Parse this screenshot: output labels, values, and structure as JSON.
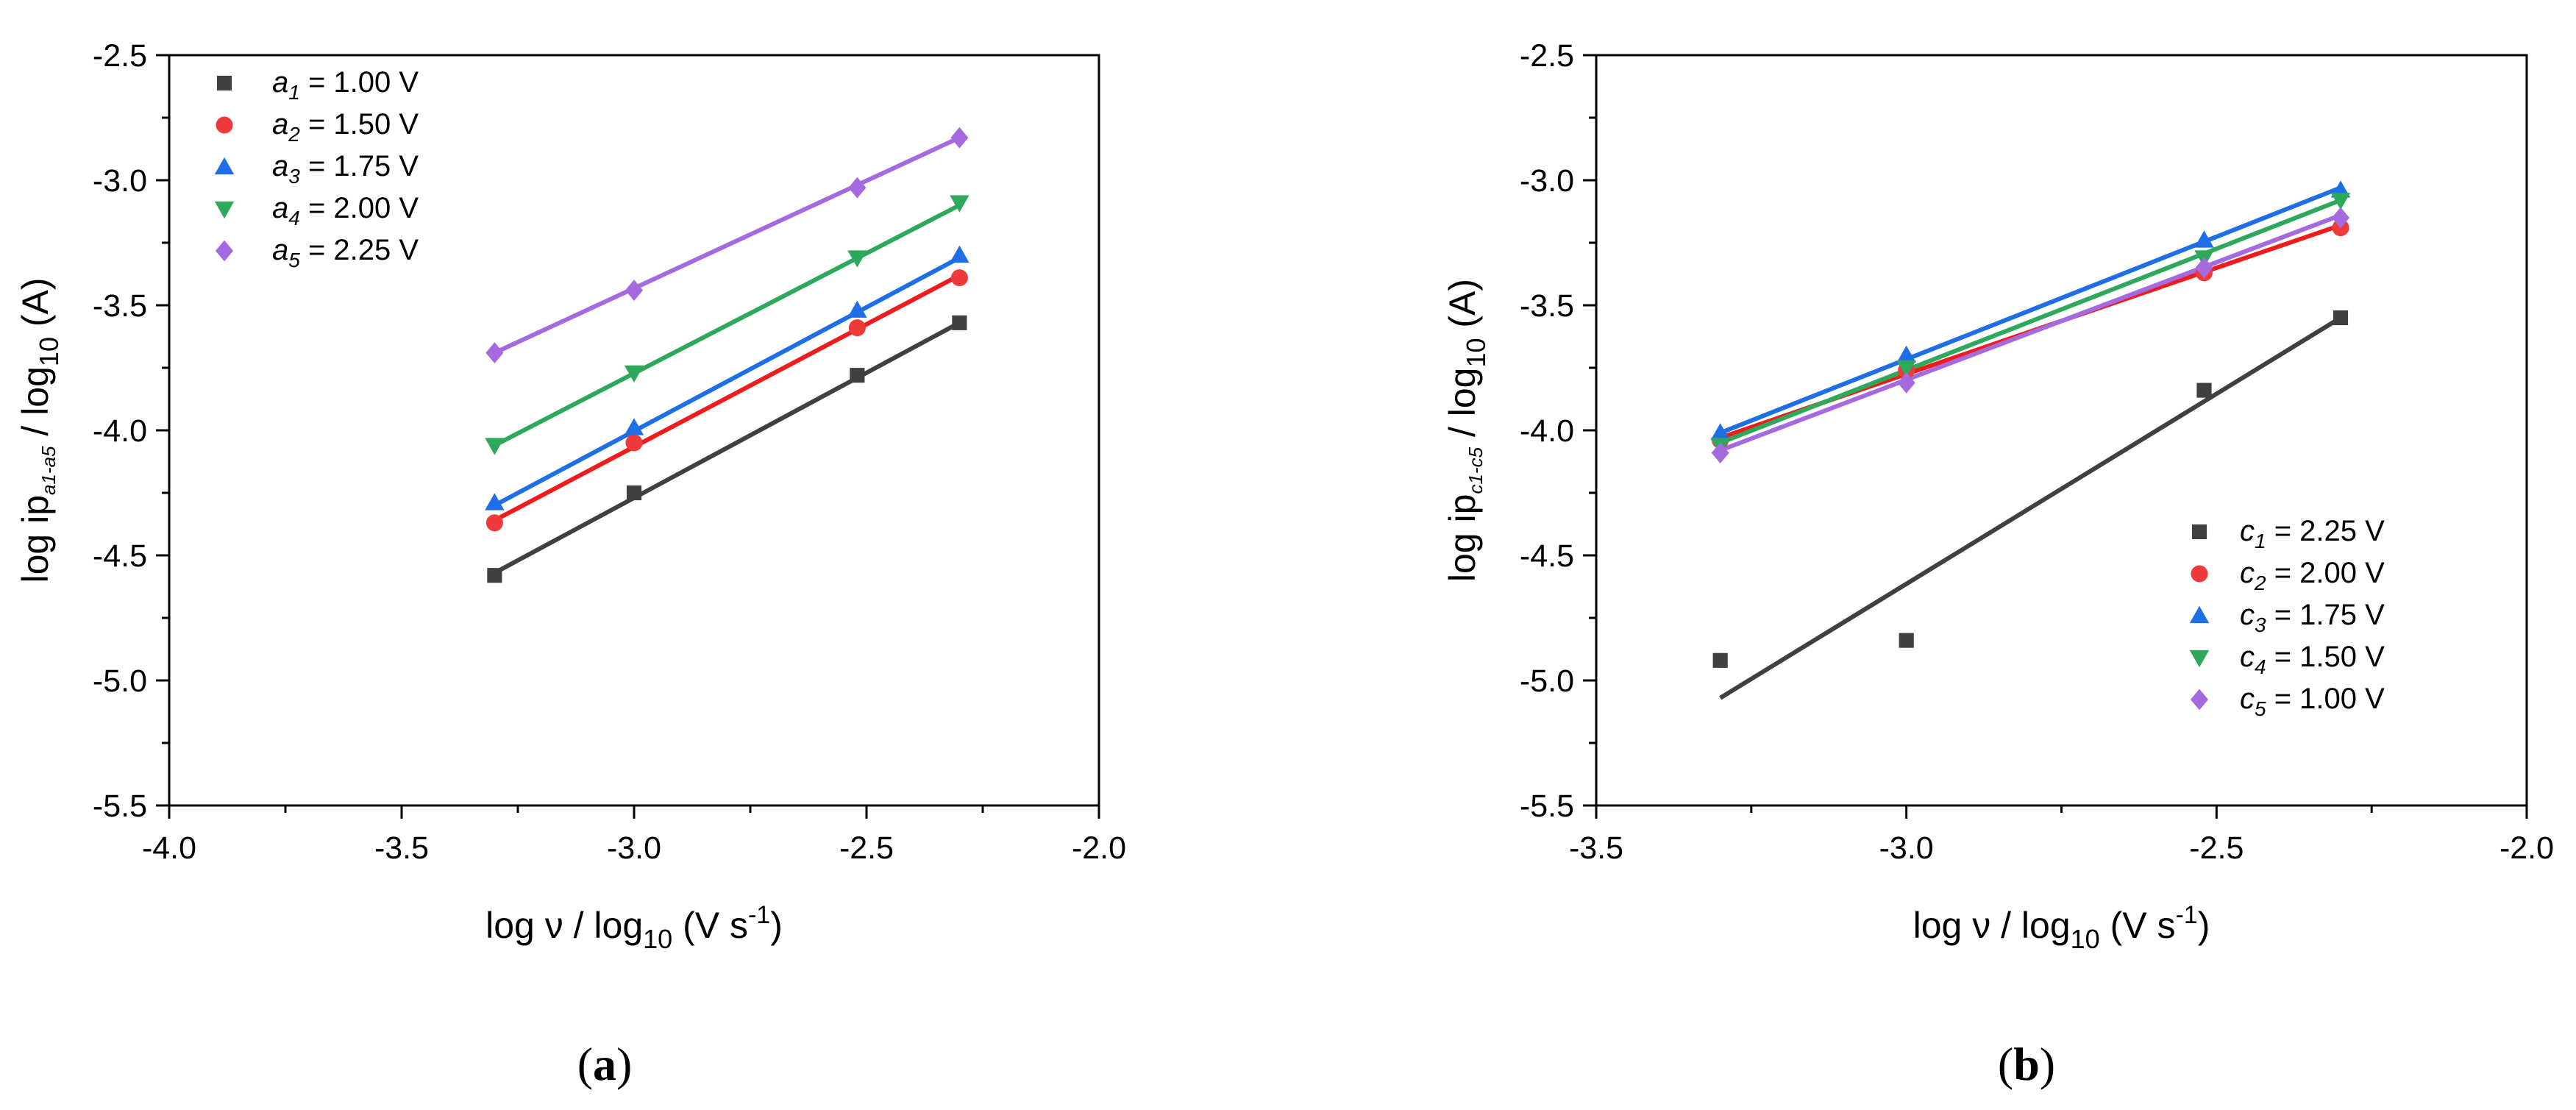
{
  "chart_data": [
    {
      "panel": "a",
      "panel_label": "(a)",
      "type": "scatter",
      "xlabel_main": "log ν / log",
      "xlabel_sub": "10",
      "xlabel_rest": " (V s",
      "xlabel_sup": "-1",
      "xlabel_end": ")",
      "ylabel_main": "log ip",
      "ylabel_sub": "a1-a5",
      "ylabel_sub2": "10",
      "ylabel_mid": " / log",
      "ylabel_end": " (A)",
      "xlim": [
        -4.0,
        -2.0
      ],
      "ylim": [
        -5.5,
        -2.5
      ],
      "xticks": [
        -4.0,
        -3.5,
        -3.0,
        -2.5,
        -2.0
      ],
      "yticks": [
        -5.5,
        -5.0,
        -4.5,
        -4.0,
        -3.5,
        -3.0,
        -2.5
      ],
      "xtick_labels": [
        "-4.0",
        "-3.5",
        "-3.0",
        "-2.5",
        "-2.0"
      ],
      "ytick_labels": [
        "-5.5",
        "-5.0",
        "-4.5",
        "-4.0",
        "-3.5",
        "-3.0",
        "-2.5"
      ],
      "legend_position": "top-left",
      "x": [
        -3.3,
        -3.0,
        -2.52,
        -2.3
      ],
      "series": [
        {
          "name": "a1 = 1.00 V",
          "sym": "a",
          "idx": "1",
          "val": " = 1.00 V",
          "marker": "square",
          "color": "#404040",
          "line_color": "#404040",
          "values": [
            -4.58,
            -4.25,
            -3.78,
            -3.57
          ],
          "fit": [
            -4.57,
            -3.57
          ]
        },
        {
          "name": "a2 = 1.50 V",
          "sym": "a",
          "idx": "2",
          "val": " = 1.50 V",
          "marker": "circle",
          "color": "#ee3a3a",
          "line_color": "#ee1c1c",
          "values": [
            -4.37,
            -4.05,
            -3.59,
            -3.39
          ],
          "fit": [
            -4.36,
            -3.38
          ]
        },
        {
          "name": "a3 = 1.75 V",
          "sym": "a",
          "idx": "3",
          "val": " = 1.75 V",
          "marker": "triangle-up",
          "color": "#1e6ee8",
          "line_color": "#1e6ee8",
          "values": [
            -4.29,
            -3.99,
            -3.52,
            -3.3
          ],
          "fit": [
            -4.3,
            -3.31
          ]
        },
        {
          "name": "a4 = 2.00 V",
          "sym": "a",
          "idx": "4",
          "val": " = 2.00 V",
          "marker": "triangle-down",
          "color": "#2ea85a",
          "line_color": "#2ea85a",
          "values": [
            -4.06,
            -3.77,
            -3.31,
            -3.09
          ],
          "fit": [
            -4.06,
            -3.1
          ]
        },
        {
          "name": "a5 = 2.25 V",
          "sym": "a",
          "idx": "5",
          "val": " = 2.25 V",
          "marker": "diamond",
          "color": "#a56ae0",
          "line_color": "#a56ae0",
          "values": [
            -3.69,
            -3.44,
            -3.03,
            -2.83
          ],
          "fit": [
            -3.69,
            -2.83
          ]
        }
      ]
    },
    {
      "panel": "b",
      "panel_label": "(b)",
      "type": "scatter",
      "xlabel_main": "log ν / log",
      "xlabel_sub": "10",
      "xlabel_rest": " (V s",
      "xlabel_sup": "-1",
      "xlabel_end": ")",
      "ylabel_main": "log ip",
      "ylabel_sub": "c1-c5",
      "ylabel_sub2": "10",
      "ylabel_mid": " / log",
      "ylabel_end": " (A)",
      "xlim": [
        -3.5,
        -2.0
      ],
      "ylim": [
        -5.5,
        -2.5
      ],
      "xticks": [
        -3.5,
        -3.0,
        -2.5,
        -2.0
      ],
      "yticks": [
        -5.5,
        -5.0,
        -4.5,
        -4.0,
        -3.5,
        -3.0,
        -2.5
      ],
      "xtick_labels": [
        "-3.5",
        "-3.0",
        "-2.5",
        "-2.0"
      ],
      "ytick_labels": [
        "-5.5",
        "-5.0",
        "-4.5",
        "-4.0",
        "-3.5",
        "-3.0",
        "-2.5"
      ],
      "legend_position": "bottom-right",
      "x": [
        -3.3,
        -3.0,
        -2.52,
        -2.3
      ],
      "series": [
        {
          "name": "c1 = 2.25 V",
          "sym": "c",
          "idx": "1",
          "val": " = 2.25 V",
          "marker": "square",
          "color": "#404040",
          "line_color": "#404040",
          "values": [
            -4.92,
            -4.84,
            -3.84,
            -3.55
          ],
          "fit": [
            -5.07,
            -3.55
          ]
        },
        {
          "name": "c2 = 2.00 V",
          "sym": "c",
          "idx": "2",
          "val": " = 2.00 V",
          "marker": "circle",
          "color": "#ee3a3a",
          "line_color": "#ee1c1c",
          "values": [
            -4.04,
            -3.76,
            -3.37,
            -3.19
          ],
          "fit": [
            -4.03,
            -3.18
          ]
        },
        {
          "name": "c3 = 1.75 V",
          "sym": "c",
          "idx": "3",
          "val": " = 1.75 V",
          "marker": "triangle-up",
          "color": "#1e6ee8",
          "line_color": "#1e6ee8",
          "values": [
            -4.01,
            -3.7,
            -3.24,
            -3.04
          ],
          "fit": [
            -4.01,
            -3.03
          ]
        },
        {
          "name": "c4 = 1.50 V",
          "sym": "c",
          "idx": "4",
          "val": " = 1.50 V",
          "marker": "triangle-down",
          "color": "#2ea85a",
          "line_color": "#2ea85a",
          "values": [
            -4.06,
            -3.75,
            -3.31,
            -3.08
          ],
          "fit": [
            -4.05,
            -3.08
          ]
        },
        {
          "name": "c5 = 1.00 V",
          "sym": "c",
          "idx": "5",
          "val": " = 1.00 V",
          "marker": "diamond",
          "color": "#a56ae0",
          "line_color": "#a56ae0",
          "values": [
            -4.09,
            -3.81,
            -3.35,
            -3.15
          ],
          "fit": [
            -4.08,
            -3.14
          ]
        }
      ]
    }
  ]
}
